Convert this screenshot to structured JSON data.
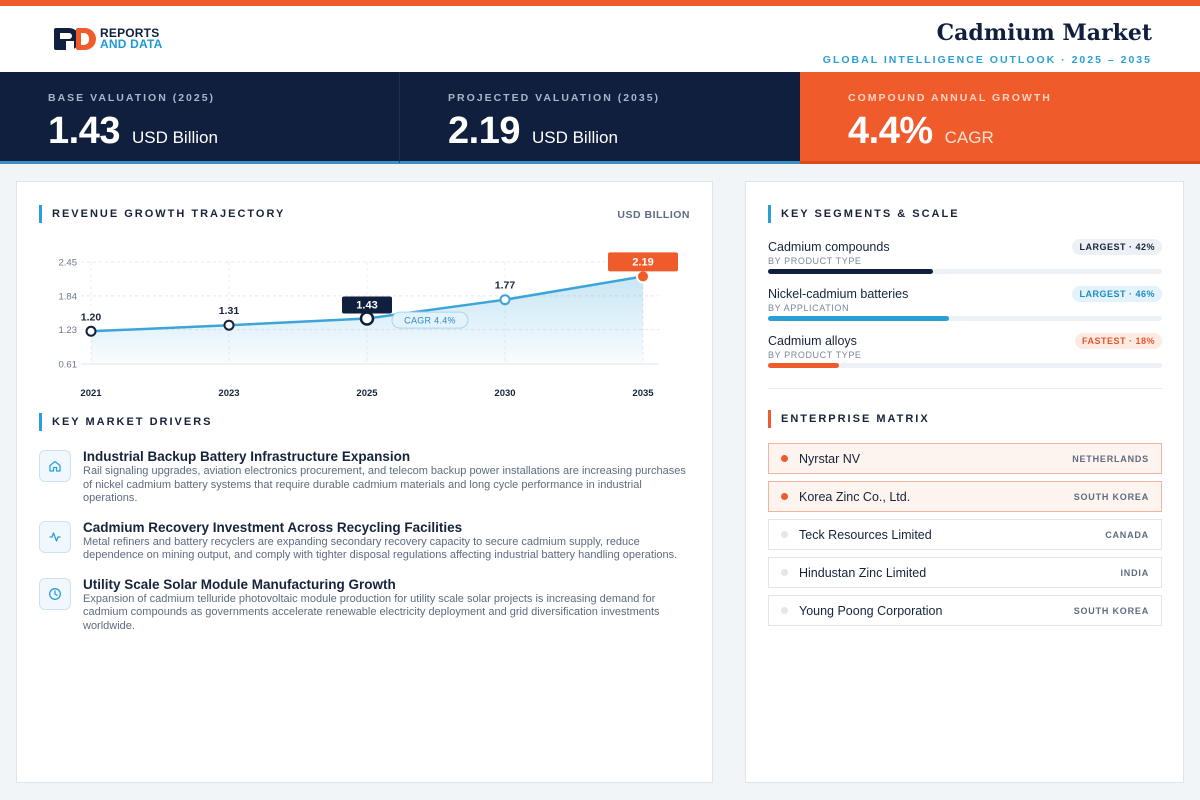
{
  "brand": {
    "line1": "REPORTS",
    "line2": "AND DATA"
  },
  "header": {
    "title": "Cadmium Market",
    "subtitle": "GLOBAL INTELLIGENCE OUTLOOK  ·  2025 – 2035"
  },
  "kpis": [
    {
      "label": "BASE VALUATION (2025)",
      "value": "1.43",
      "unit": "USD Billion"
    },
    {
      "label": "PROJECTED VALUATION (2035)",
      "value": "2.19",
      "unit": "USD Billion"
    },
    {
      "label": "COMPOUND ANNUAL GROWTH",
      "value": "4.4%",
      "unit": "CAGR"
    }
  ],
  "chart_section": {
    "title": "REVENUE GROWTH TRAJECTORY",
    "unit": "USD BILLION"
  },
  "chart_data": {
    "type": "line",
    "categories": [
      "2021",
      "2023",
      "2025",
      "2030",
      "2035"
    ],
    "values": [
      1.2,
      1.31,
      1.43,
      1.77,
      2.19
    ],
    "value_labels": [
      "1.20",
      "1.31",
      "1.43",
      "1.77",
      "2.19"
    ],
    "y_ticks": [
      "2.45",
      "1.84",
      "1.23",
      "0.61"
    ],
    "ylim": [
      0.61,
      2.45
    ],
    "annotation": "CAGR 4.4%",
    "grid": true,
    "highlight_colors": {
      "base": "#0f1f3d",
      "projected": "#ef5b2b",
      "line": "#3ba5da"
    }
  },
  "drivers_section": {
    "title": "KEY MARKET DRIVERS"
  },
  "drivers": [
    {
      "icon": "home-icon",
      "title": "Industrial Backup Battery Infrastructure Expansion",
      "text": "Rail signaling upgrades, aviation electronics procurement, and telecom backup power installations are increasing purchases of nickel cadmium battery systems that require durable cadmium materials and long cycle performance in industrial operations."
    },
    {
      "icon": "activity-icon",
      "title": "Cadmium Recovery Investment Across Recycling Facilities",
      "text": "Metal refiners and battery recyclers are expanding secondary recovery capacity to secure cadmium supply, reduce dependence on mining output, and comply with tighter disposal regulations affecting industrial battery handling operations."
    },
    {
      "icon": "clock-icon",
      "title": "Utility Scale Solar Module Manufacturing Growth",
      "text": "Expansion of cadmium telluride photovoltaic module production for utility scale solar projects is increasing demand for cadmium compounds as governments accelerate renewable electricity deployment and grid diversification investments worldwide."
    }
  ],
  "segments_section": {
    "title": "KEY SEGMENTS & SCALE"
  },
  "segments": [
    {
      "name": "Cadmium compounds",
      "sub": "BY PRODUCT TYPE",
      "badge": "LARGEST · 42%",
      "share": 0.42,
      "color": "#0f1f3d"
    },
    {
      "name": "Nickel-cadmium batteries",
      "sub": "BY APPLICATION",
      "badge": "LARGEST · 46%",
      "share": 0.46,
      "color": "#2a9fd6"
    },
    {
      "name": "Cadmium alloys",
      "sub": "BY PRODUCT TYPE",
      "badge": "FASTEST · 18%",
      "share": 0.18,
      "color": "#ef5b2b"
    }
  ],
  "matrix_section": {
    "title": "ENTERPRISE MATRIX"
  },
  "companies": [
    {
      "name": "Nyrstar NV",
      "country": "NETHERLANDS",
      "highlight": true
    },
    {
      "name": "Korea Zinc Co., Ltd.",
      "country": "SOUTH KOREA",
      "highlight": true
    },
    {
      "name": "Teck Resources Limited",
      "country": "CANADA",
      "highlight": false
    },
    {
      "name": "Hindustan Zinc Limited",
      "country": "INDIA",
      "highlight": false
    },
    {
      "name": "Young Poong Corporation",
      "country": "SOUTH KOREA",
      "highlight": false
    }
  ]
}
